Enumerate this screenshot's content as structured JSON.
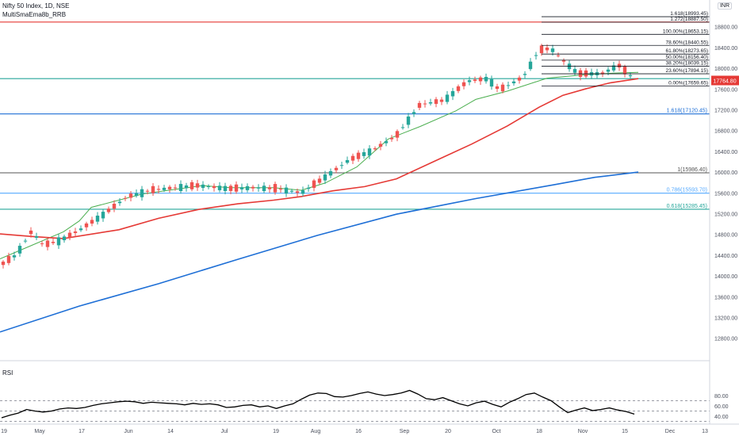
{
  "header": {
    "symbol": "Nifty 50 Index, 1D, NSE",
    "indicator": "MultiSmaEma8b_RRB",
    "currency": "INR"
  },
  "rsi_label": "RSI",
  "chart_data": [
    {
      "type": "candlestick",
      "y_ticks": [
        12800,
        13200,
        13600,
        14000,
        14400,
        14800,
        15200,
        15600,
        16000,
        16400,
        16800,
        17200,
        17600,
        18000,
        18400,
        18800
      ],
      "x_ticks": [
        "19",
        "May",
        "17",
        "Jun",
        "14",
        "Jul",
        "19",
        "Aug",
        "16",
        "Sep",
        "20",
        "Oct",
        "18",
        "Nov",
        "15",
        "Dec",
        "13"
      ],
      "last_price": 17764.8,
      "colors": {
        "up": "#26a69a",
        "down": "#ef5350",
        "sma_short": "#4caf50",
        "ema_mid": "#e53935",
        "ema_long": "#1e6fd6",
        "price_label": "#e53935"
      },
      "moving_averages": [
        {
          "name": "short",
          "points": [
            [
              0,
              14330
            ],
            [
              40,
              14590
            ],
            [
              80,
              14850
            ],
            [
              100,
              15060
            ],
            [
              115,
              15320
            ],
            [
              180,
              15580
            ],
            [
              255,
              15740
            ],
            [
              290,
              15700
            ],
            [
              345,
              15700
            ],
            [
              380,
              15650
            ],
            [
              410,
              15790
            ],
            [
              450,
              16100
            ],
            [
              490,
              16640
            ],
            [
              530,
              16880
            ],
            [
              575,
              17180
            ],
            [
              600,
              17400
            ],
            [
              640,
              17560
            ],
            [
              690,
              17810
            ],
            [
              740,
              17880
            ],
            [
              780,
              17910
            ],
            [
              805,
              17920
            ]
          ]
        },
        {
          "name": "mid",
          "points": [
            [
              0,
              14810
            ],
            [
              40,
              14760
            ],
            [
              80,
              14720
            ],
            [
              150,
              14890
            ],
            [
              200,
              15110
            ],
            [
              250,
              15280
            ],
            [
              300,
              15390
            ],
            [
              345,
              15460
            ],
            [
              380,
              15530
            ],
            [
              420,
              15640
            ],
            [
              460,
              15720
            ],
            [
              500,
              15870
            ],
            [
              555,
              16260
            ],
            [
              595,
              16540
            ],
            [
              640,
              16890
            ],
            [
              680,
              17250
            ],
            [
              710,
              17480
            ],
            [
              740,
              17610
            ],
            [
              770,
              17720
            ],
            [
              805,
              17800
            ]
          ]
        },
        {
          "name": "long",
          "points": [
            [
              0,
              12920
            ],
            [
              100,
              13420
            ],
            [
              200,
              13850
            ],
            [
              300,
              14320
            ],
            [
              400,
              14780
            ],
            [
              500,
              15190
            ],
            [
              600,
              15490
            ],
            [
              700,
              15760
            ],
            [
              750,
              15900
            ],
            [
              805,
              16000
            ]
          ]
        }
      ],
      "horizontal_levels": [
        {
          "value": 18890,
          "color": "#e53935",
          "label": ""
        },
        {
          "value": 17800,
          "color": "#26a69a",
          "label": ""
        },
        {
          "value": 17120.45,
          "color": "#1e6fd6",
          "label": "1.618(17120.45)"
        },
        {
          "value": 15986.4,
          "color": "#555555",
          "label": "1(15986.40)"
        },
        {
          "value": 15593.7,
          "color": "#55aaff",
          "label": "0.786(15593.70)"
        },
        {
          "value": 15285.45,
          "color": "#26a69a",
          "label": "0.618(15285.45)"
        }
      ],
      "fib_retracement": [
        {
          "label": "1.618(18993.45)",
          "value": 18993.45
        },
        {
          "label": "1.272(18887.50)",
          "value": 18887.5
        },
        {
          "label": "100.00%(18653.15)",
          "value": 18653.15
        },
        {
          "label": "78.60%(18440.55)",
          "value": 18440.55
        },
        {
          "label": "61.80%(18273.65)",
          "value": 18273.65
        },
        {
          "label": "50.00%(18156.40)",
          "value": 18156.4
        },
        {
          "label": "38.20%(18039.15)",
          "value": 18039.15
        },
        {
          "label": "23.60%(17894.15)",
          "value": 17894.15
        },
        {
          "label": "0.00%(17659.65)",
          "value": 17659.65
        }
      ]
    },
    {
      "type": "line",
      "name": "RSI",
      "y_ticks": [
        40.0,
        60.0,
        80.0
      ],
      "guide_levels": [
        30,
        50,
        70
      ],
      "series": [
        {
          "values": [
            37,
            42,
            46,
            53,
            50,
            48,
            50,
            54,
            56,
            55,
            57,
            61,
            64,
            66,
            68,
            69,
            68,
            65,
            67,
            66,
            65,
            64,
            62,
            65,
            63,
            64,
            62,
            57,
            58,
            61,
            62,
            58,
            60,
            55,
            60,
            64,
            73,
            81,
            85,
            84,
            78,
            77,
            80,
            84,
            87,
            83,
            80,
            82,
            85,
            90,
            83,
            74,
            72,
            76,
            70,
            64,
            60,
            66,
            69,
            63,
            58,
            67,
            74,
            82,
            85,
            77,
            70,
            58,
            47,
            52,
            56,
            51,
            53,
            56,
            52,
            49,
            44
          ]
        }
      ]
    }
  ]
}
